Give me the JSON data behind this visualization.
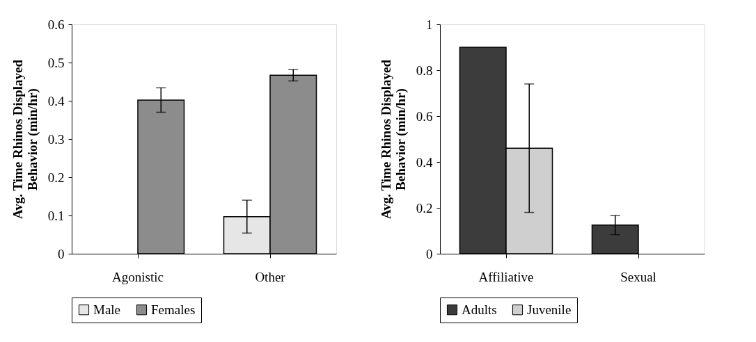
{
  "chart_data": [
    {
      "type": "bar",
      "categories": [
        "Agonistic",
        "Other"
      ],
      "ylabel": "Avg. Time Rhinos Displayed Behavior (min/hr)",
      "ylim": [
        0,
        0.6
      ],
      "yticks": [
        0,
        0.1,
        0.2,
        0.3,
        0.4,
        0.5,
        0.6
      ],
      "grid": false,
      "legend": "bottom",
      "series": [
        {
          "name": "Male",
          "color": "#e6e6e6",
          "values": [
            0,
            0.097
          ],
          "errors": [
            null,
            0.043
          ]
        },
        {
          "name": "Females",
          "color": "#8c8c8c",
          "values": [
            0.402,
            0.467
          ],
          "errors": [
            0.032,
            0.015
          ]
        }
      ]
    },
    {
      "type": "bar",
      "categories": [
        "Affiliative",
        "Sexual"
      ],
      "ylabel": "Avg. Time Rhinos Displayed Behavior (min/hr)",
      "ylim": [
        0,
        1
      ],
      "yticks": [
        0,
        0.2,
        0.4,
        0.6,
        0.8,
        1
      ],
      "grid": false,
      "legend": "bottom",
      "series": [
        {
          "name": "Adults",
          "color": "#3c3c3c",
          "values": [
            0.9,
            0.125
          ],
          "errors": [
            null,
            0.042
          ]
        },
        {
          "name": "Juvenile",
          "color": "#cfcfcf",
          "values": [
            0.46,
            0
          ],
          "errors": [
            0.28,
            null
          ]
        }
      ]
    }
  ]
}
